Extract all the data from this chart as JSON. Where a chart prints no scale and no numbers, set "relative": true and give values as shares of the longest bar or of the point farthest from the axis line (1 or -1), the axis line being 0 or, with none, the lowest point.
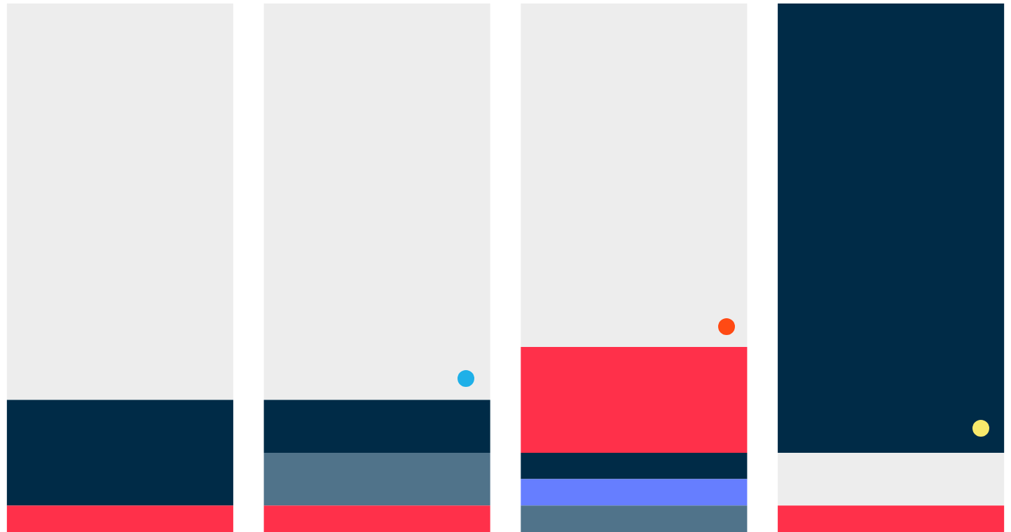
{
  "chart_data": {
    "type": "bar",
    "stacked": true,
    "relative": true,
    "legend": false,
    "categories": [
      null,
      null,
      null,
      null
    ],
    "series": [
      {
        "colors": [
          "#ff304a",
          "#ff304a",
          "#50738a",
          "#ff304a"
        ],
        "values": [
          0.05,
          0.05,
          0.05,
          0.05
        ]
      },
      {
        "colors": [
          "#002b47",
          "#50738a",
          "#667eff",
          "#ededed"
        ],
        "values": [
          0.2,
          0.1,
          0.05,
          0.1
        ]
      },
      {
        "colors": [
          "#ededed",
          "#002b47",
          "#002b47",
          "#002b47"
        ],
        "values": [
          0.75,
          0.1,
          0.05,
          0.85
        ]
      },
      {
        "colors": [
          "#ededed",
          "#ededed",
          "#ff304a",
          "#ededed"
        ],
        "values": [
          null,
          0.75,
          0.2,
          null
        ]
      },
      {
        "colors": [
          "#ededed",
          "#ededed",
          "#ededed",
          "#ededed"
        ],
        "values": [
          null,
          null,
          0.65,
          null
        ]
      }
    ]
  }
}
